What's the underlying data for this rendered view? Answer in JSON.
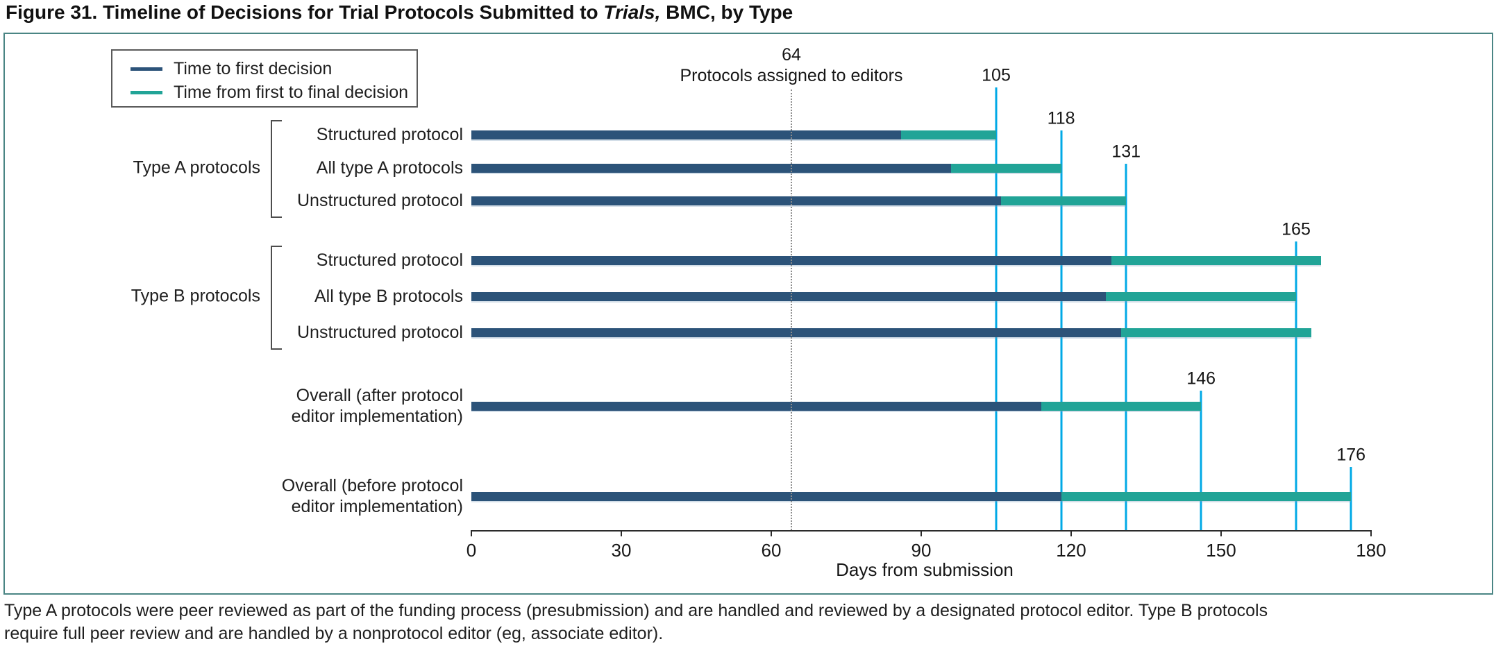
{
  "title": {
    "prefix": "Figure 31. Timeline of Decisions for Trial Protocols Submitted to ",
    "italic": "Trials,",
    "suffix": " BMC, by Type"
  },
  "legend": {
    "items": [
      {
        "label": "Time to first decision",
        "color": "#2c5379"
      },
      {
        "label": "Time from first to final decision",
        "color": "#21a497"
      }
    ]
  },
  "chart_data": {
    "type": "bar",
    "orientation": "horizontal-stacked-timeline",
    "xlabel": "Days from submission",
    "xlim": [
      0,
      180
    ],
    "xticks": [
      "0",
      "30",
      "60",
      "90",
      "120",
      "150",
      "180"
    ],
    "xtick_values": [
      0,
      30,
      60,
      90,
      120,
      150,
      180
    ],
    "grid": false,
    "legend_position": "top-left",
    "series_names": [
      "Time to first decision",
      "Time from first to final decision"
    ],
    "reference_line": {
      "day": 64,
      "value_label": "64",
      "text_label": "Protocols assigned to editors"
    },
    "groups": [
      {
        "label": "Type A protocols",
        "row_indexes": [
          0,
          1,
          2
        ]
      },
      {
        "label": "Type B protocols",
        "row_indexes": [
          3,
          4,
          5
        ]
      }
    ],
    "rows": [
      {
        "label": "Structured protocol",
        "first_decision_days": 86,
        "final_decision_days": 105
      },
      {
        "label": "All type A protocols",
        "first_decision_days": 96,
        "final_decision_days": 118
      },
      {
        "label": "Unstructured protocol",
        "first_decision_days": 106,
        "final_decision_days": 131
      },
      {
        "label": "Structured protocol",
        "first_decision_days": 128,
        "final_decision_days": 170
      },
      {
        "label": "All type B protocols",
        "first_decision_days": 127,
        "final_decision_days": 165
      },
      {
        "label": "Unstructured protocol",
        "first_decision_days": 130,
        "final_decision_days": 168
      },
      {
        "label": "Overall (after protocol\neditor implementation)",
        "first_decision_days": 114,
        "final_decision_days": 146
      },
      {
        "label": "Overall (before protocol\neditor implementation)",
        "first_decision_days": 118,
        "final_decision_days": 176
      }
    ],
    "callouts": [
      {
        "day": 105,
        "label": "105"
      },
      {
        "day": 118,
        "label": "118"
      },
      {
        "day": 131,
        "label": "131"
      },
      {
        "day": 165,
        "label": "165"
      },
      {
        "day": 146,
        "label": "146"
      },
      {
        "day": 176,
        "label": "176"
      }
    ]
  },
  "colors": {
    "first_decision": "#2c5379",
    "final_decision": "#21a497",
    "callout_line": "#00a9e6",
    "figure_border": "#4a8584"
  },
  "footnote": "Type A protocols were peer reviewed as part of the funding process (presubmission) and are handled and reviewed by a designated protocol editor. Type B protocols\nrequire full peer review and are handled by a nonprotocol editor (eg, associate editor)."
}
